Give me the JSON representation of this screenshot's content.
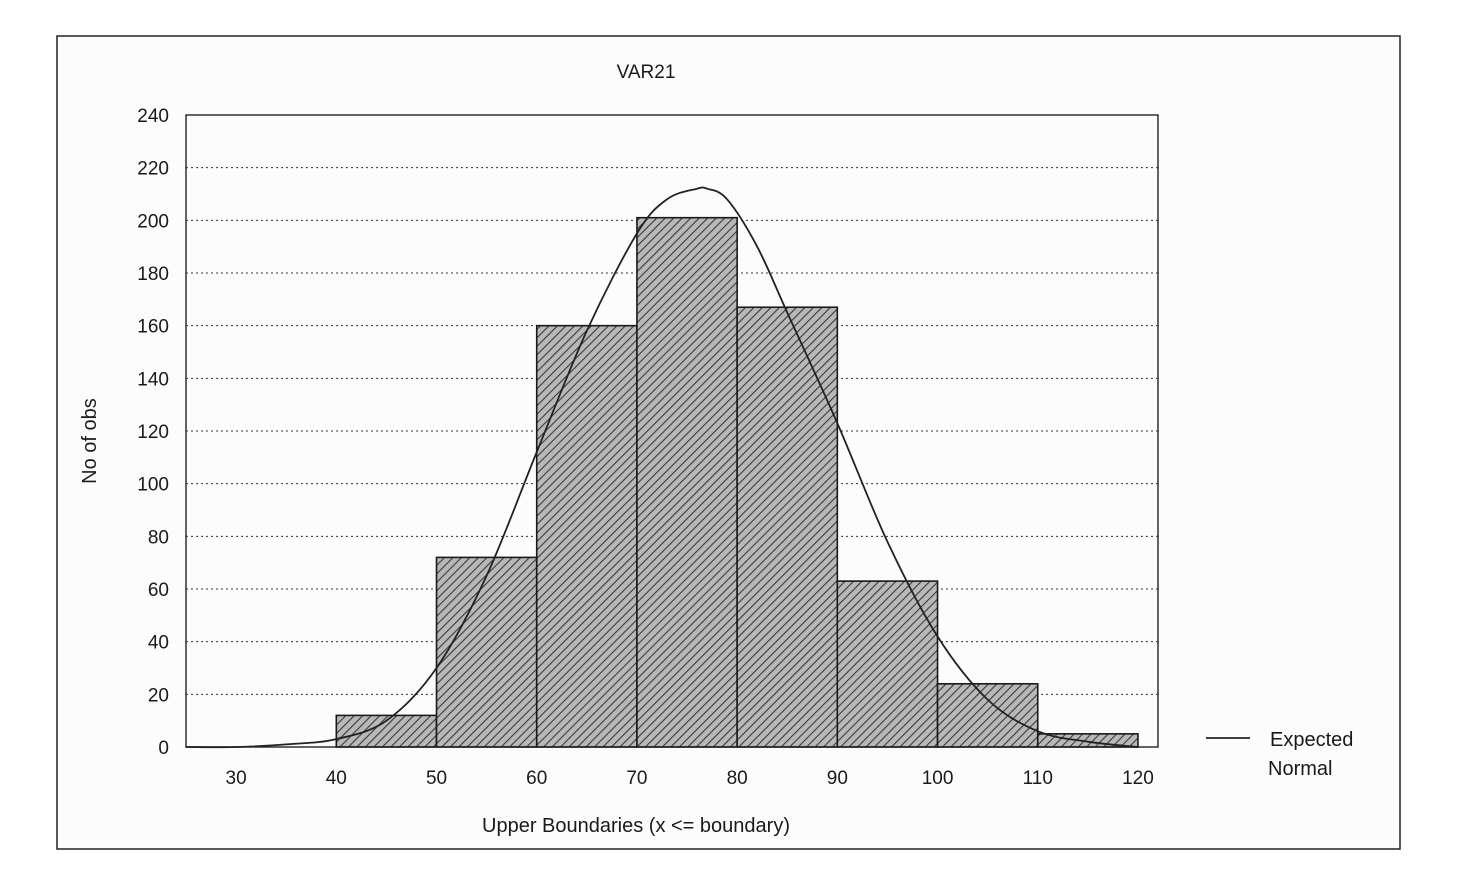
{
  "chart_data": {
    "type": "bar",
    "title": "VAR21",
    "xlabel": "Upper Boundaries (x <= boundary)",
    "ylabel": "No of obs",
    "x_ticks": [
      30,
      40,
      50,
      60,
      70,
      80,
      90,
      100,
      110,
      120
    ],
    "y_ticks": [
      0,
      20,
      40,
      60,
      80,
      100,
      120,
      140,
      160,
      180,
      200,
      220,
      240
    ],
    "xlim": [
      25,
      122
    ],
    "ylim": [
      0,
      240
    ],
    "bins": [
      {
        "lower": 30,
        "upper": 40,
        "count": 0
      },
      {
        "lower": 40,
        "upper": 50,
        "count": 12
      },
      {
        "lower": 50,
        "upper": 60,
        "count": 72
      },
      {
        "lower": 60,
        "upper": 70,
        "count": 160
      },
      {
        "lower": 70,
        "upper": 80,
        "count": 201
      },
      {
        "lower": 80,
        "upper": 90,
        "count": 167
      },
      {
        "lower": 90,
        "upper": 100,
        "count": 63
      },
      {
        "lower": 100,
        "upper": 110,
        "count": 24
      },
      {
        "lower": 110,
        "upper": 120,
        "count": 5
      }
    ],
    "expected_normal": {
      "x": [
        25,
        30,
        35,
        40,
        45,
        50,
        55,
        60,
        65,
        70,
        73,
        76,
        77,
        79,
        82,
        85,
        90,
        95,
        100,
        105,
        110,
        115,
        120
      ],
      "y": [
        0,
        0,
        1,
        3,
        10,
        30,
        65,
        112,
        158,
        195,
        208,
        212,
        212,
        208,
        190,
        165,
        123,
        78,
        42,
        18,
        6,
        2,
        0
      ]
    },
    "grid": "horizontal dotted",
    "legend": {
      "position": "right",
      "entries": [
        "Expected",
        "Normal"
      ]
    }
  }
}
